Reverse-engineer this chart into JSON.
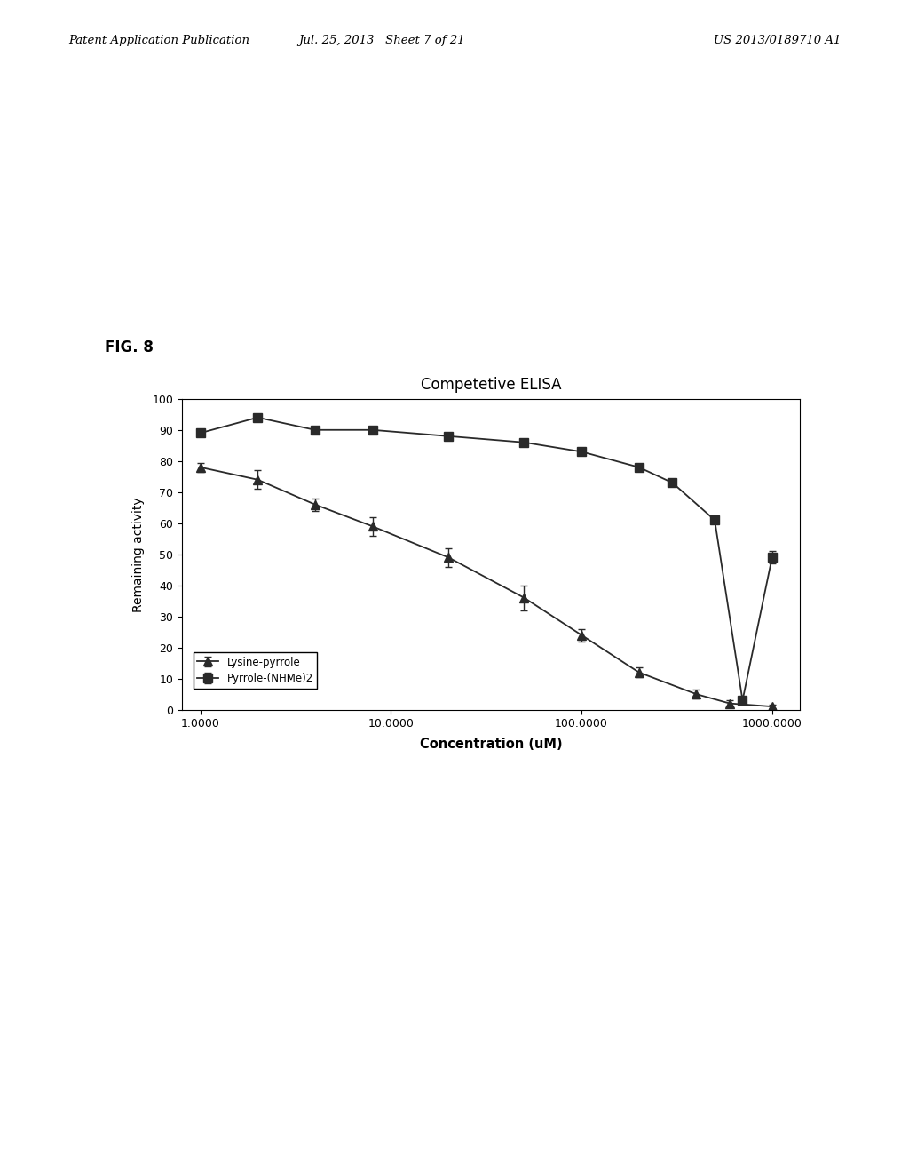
{
  "title": "Competetive ELISA",
  "xlabel": "Concentration (uM)",
  "ylabel": "Remaining activity",
  "fig8_label": "FIG. 8",
  "patent_header": {
    "left": "Patent Application Publication",
    "center": "Jul. 25, 2013   Sheet 7 of 21",
    "right": "US 2013/0189710 A1"
  },
  "lysine_pyrrole": {
    "label": "Lysine-pyrrole",
    "marker": "^",
    "color": "#2a2a2a",
    "x": [
      1.0,
      2.0,
      4.0,
      8.0,
      20.0,
      50.0,
      100.0,
      200.0,
      400.0,
      600.0,
      1000.0
    ],
    "y": [
      78,
      74,
      66,
      59,
      49,
      36,
      24,
      12,
      5,
      2,
      1
    ],
    "yerr": [
      1.5,
      3,
      2,
      3,
      3,
      4,
      2,
      1.5,
      1.5,
      1,
      0.5
    ]
  },
  "pyrrole_nhme2": {
    "label": "Pyrrole-(NHMe)2",
    "marker": "s",
    "color": "#2a2a2a",
    "x": [
      1.0,
      2.0,
      4.0,
      8.0,
      20.0,
      50.0,
      100.0,
      200.0,
      300.0,
      500.0,
      700.0,
      1000.0
    ],
    "y": [
      89,
      94,
      90,
      90,
      88,
      86,
      83,
      78,
      73,
      61,
      3,
      49
    ],
    "yerr": [
      1,
      1,
      1,
      1,
      1,
      1,
      1,
      1,
      1,
      1,
      1,
      2
    ]
  },
  "xlim": [
    0.8,
    1400
  ],
  "ylim": [
    0,
    100
  ],
  "yticks": [
    0,
    10,
    20,
    30,
    40,
    50,
    60,
    70,
    80,
    90,
    100
  ],
  "xtick_labels": [
    "1.0000",
    "10.0000",
    "100.0000",
    "1000.0000"
  ],
  "xtick_positions": [
    1.0,
    10.0,
    100.0,
    1000.0
  ]
}
